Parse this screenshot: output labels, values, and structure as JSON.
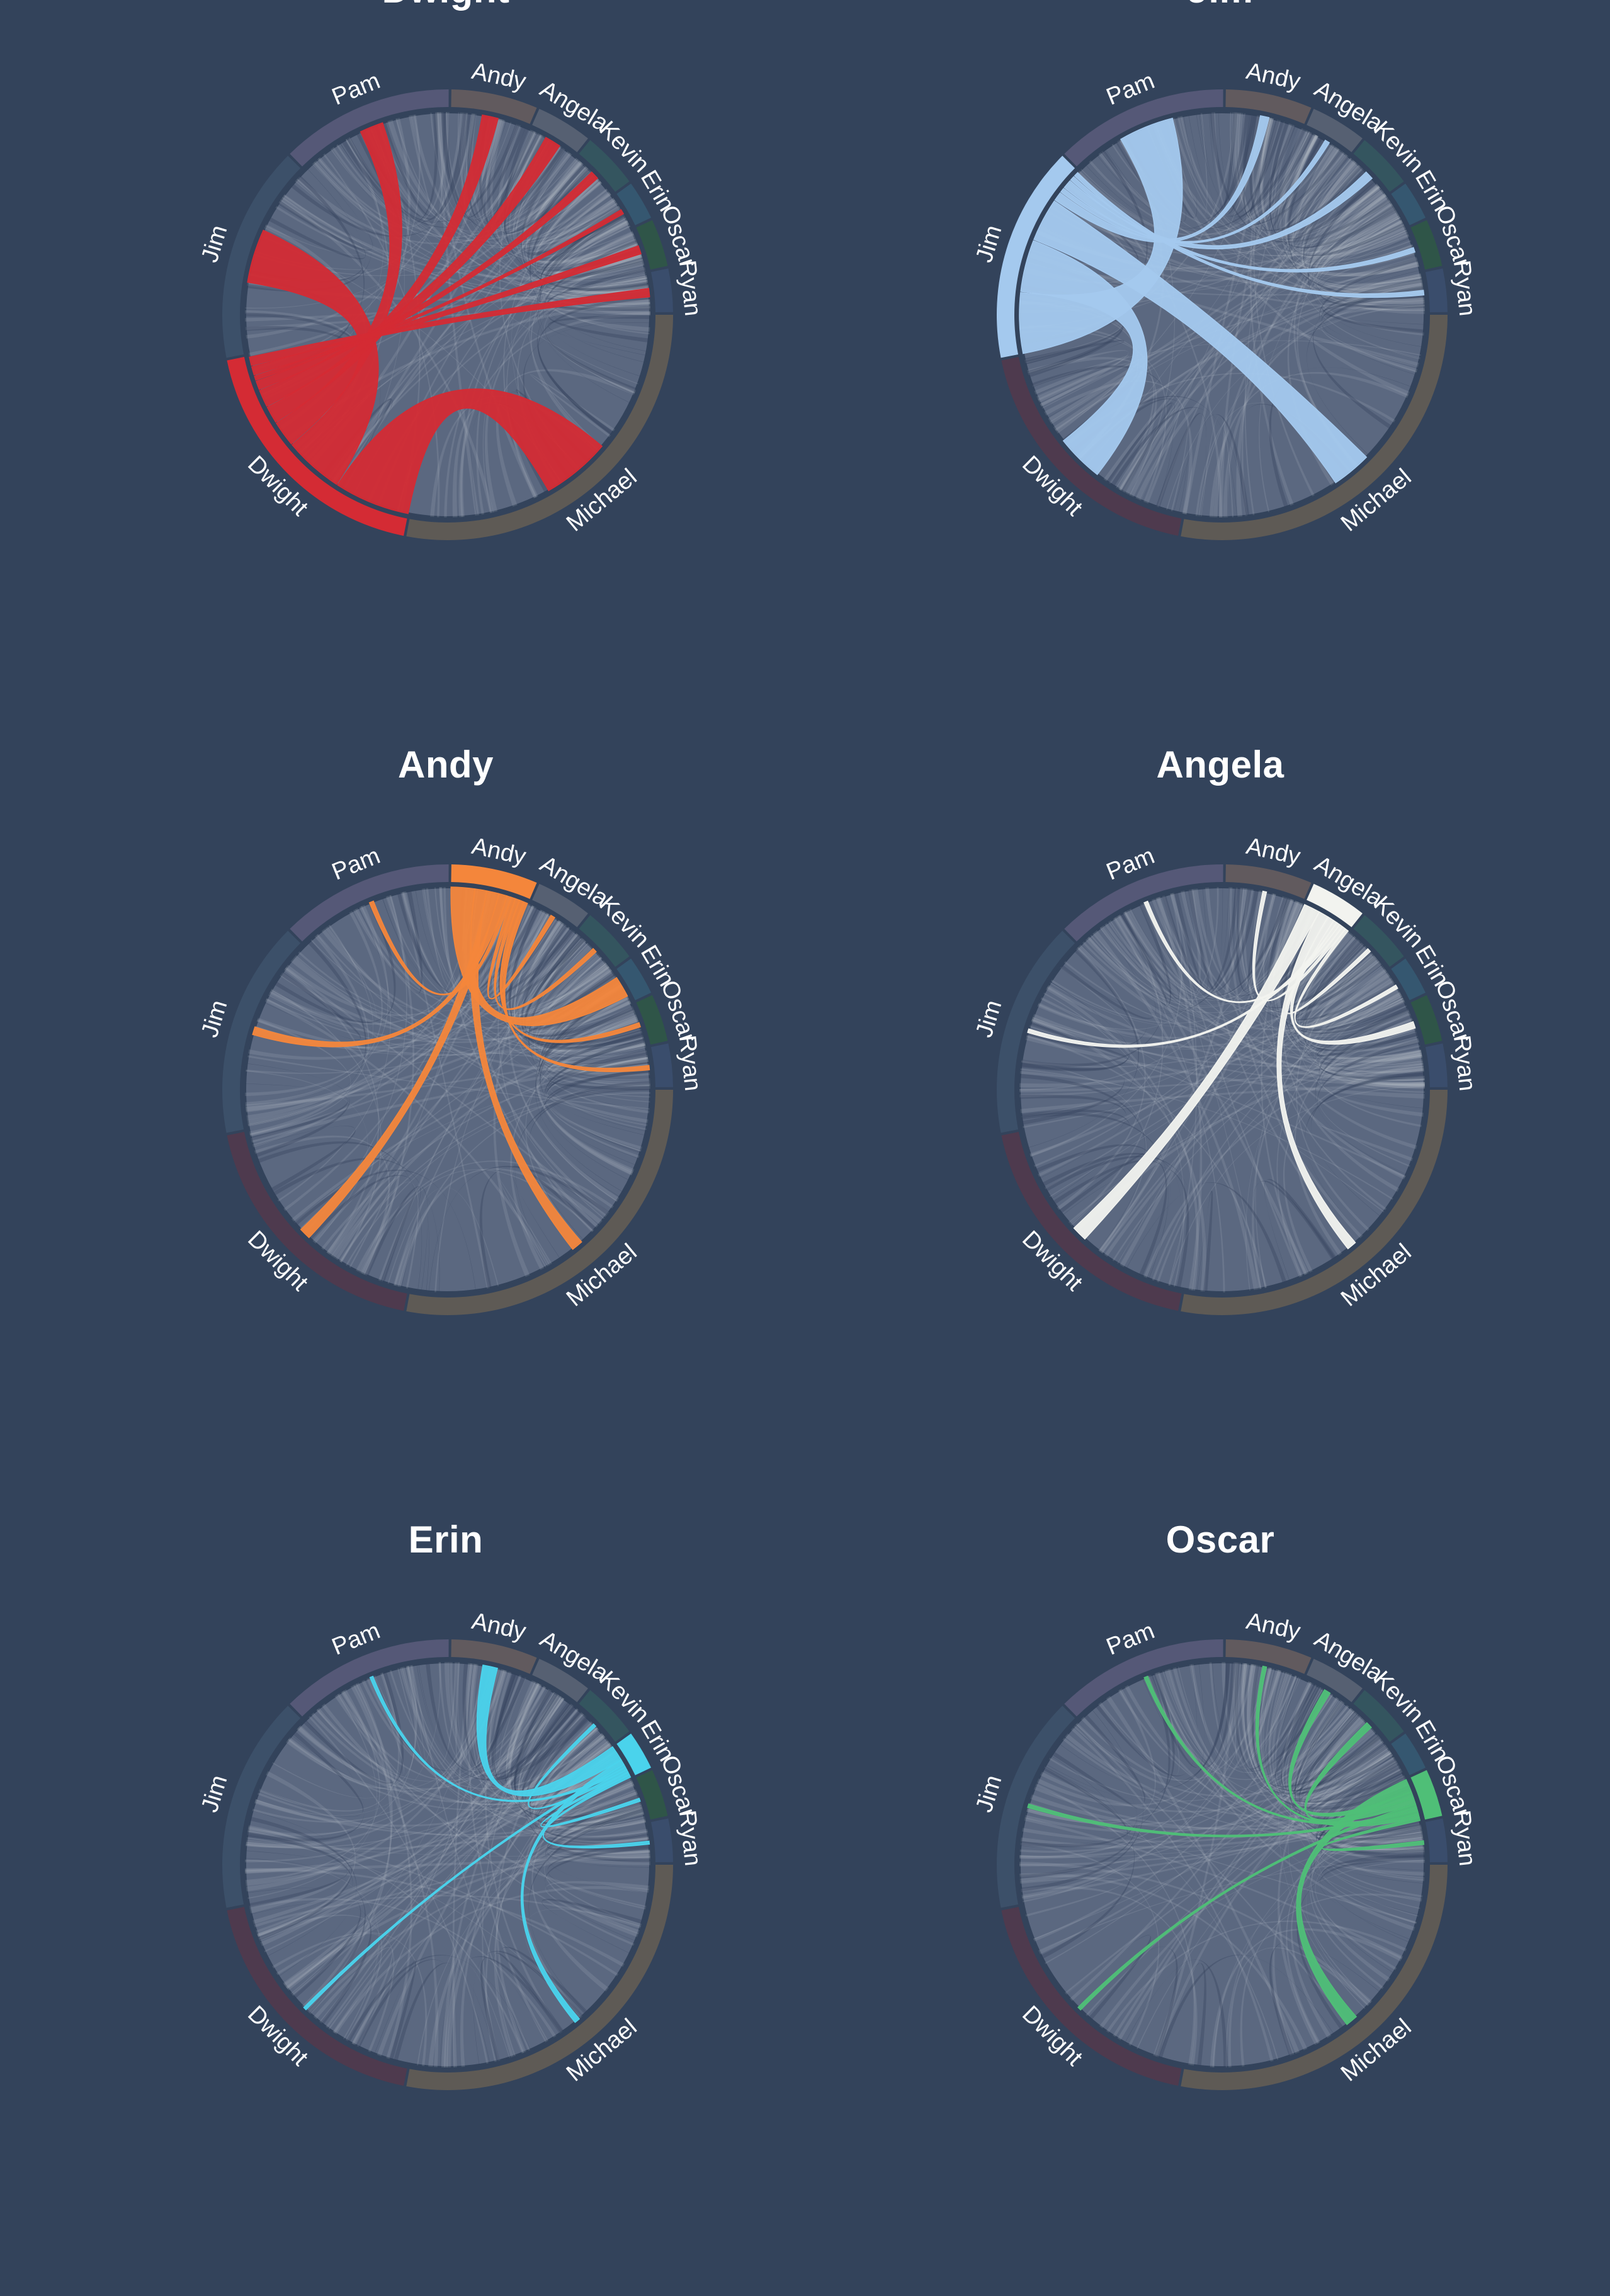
{
  "chart_data": {
    "type": "chord",
    "characters": [
      {
        "name": "Michael",
        "color": "#5e5a55",
        "value": 90
      },
      {
        "name": "Dwight",
        "color": "#4e3a4e",
        "value": 60
      },
      {
        "name": "Jim",
        "color": "#3c5069",
        "value": 50
      },
      {
        "name": "Pam",
        "color": "#555877",
        "value": 40
      },
      {
        "name": "Andy",
        "color": "#615a5e",
        "value": 20
      },
      {
        "name": "Angela",
        "color": "#566072",
        "value": 13
      },
      {
        "name": "Kevin",
        "color": "#34555f",
        "value": 13
      },
      {
        "name": "Erin",
        "color": "#355770",
        "value": 9
      },
      {
        "name": "Oscar",
        "color": "#2f5548",
        "value": 11
      },
      {
        "name": "Ryan",
        "color": "#3a4d6c",
        "value": 10
      }
    ],
    "panels": [
      {
        "title": "Dwight",
        "focus": "Dwight",
        "color": "#d42b34",
        "chords": [
          {
            "to": "Michael",
            "weight": 18
          },
          {
            "to": "Jim",
            "weight": 14
          },
          {
            "to": "Pam",
            "weight": 6
          },
          {
            "to": "Andy",
            "weight": 4
          },
          {
            "to": "Angela",
            "weight": 4
          },
          {
            "to": "Kevin",
            "weight": 2
          },
          {
            "to": "Erin",
            "weight": 1
          },
          {
            "to": "Oscar",
            "weight": 2
          },
          {
            "to": "Ryan",
            "weight": 2
          }
        ]
      },
      {
        "title": "Jim",
        "focus": "Jim",
        "color": "#a4c9ee",
        "chords": [
          {
            "to": "Pam",
            "weight": 14
          },
          {
            "to": "Dwight",
            "weight": 12
          },
          {
            "to": "Michael",
            "weight": 10
          },
          {
            "to": "Andy",
            "weight": 2
          },
          {
            "to": "Angela",
            "weight": 1
          },
          {
            "to": "Kevin",
            "weight": 2
          },
          {
            "to": "Oscar",
            "weight": 1
          },
          {
            "to": "Ryan",
            "weight": 1
          }
        ]
      },
      {
        "title": "Andy",
        "focus": "Andy",
        "color": "#f4863b",
        "chords": [
          {
            "to": "Erin",
            "weight": 6
          },
          {
            "to": "Michael",
            "weight": 3
          },
          {
            "to": "Dwight",
            "weight": 3
          },
          {
            "to": "Jim",
            "weight": 2
          },
          {
            "to": "Pam",
            "weight": 1
          },
          {
            "to": "Angela",
            "weight": 1
          },
          {
            "to": "Kevin",
            "weight": 1
          },
          {
            "to": "Oscar",
            "weight": 1
          },
          {
            "to": "Ryan",
            "weight": 1
          }
        ]
      },
      {
        "title": "Angela",
        "focus": "Angela",
        "color": "#f2f3ef",
        "chords": [
          {
            "to": "Dwight",
            "weight": 5
          },
          {
            "to": "Michael",
            "weight": 3
          },
          {
            "to": "Oscar",
            "weight": 2
          },
          {
            "to": "Kevin",
            "weight": 1
          },
          {
            "to": "Jim",
            "weight": 1
          },
          {
            "to": "Pam",
            "weight": 1
          },
          {
            "to": "Andy",
            "weight": 1
          },
          {
            "to": "Erin",
            "weight": 1
          }
        ]
      },
      {
        "title": "Erin",
        "focus": "Erin",
        "color": "#4ad3ec",
        "chords": [
          {
            "to": "Andy",
            "weight": 6
          },
          {
            "to": "Michael",
            "weight": 2
          },
          {
            "to": "Dwight",
            "weight": 1
          },
          {
            "to": "Pam",
            "weight": 1
          },
          {
            "to": "Kevin",
            "weight": 1
          },
          {
            "to": "Oscar",
            "weight": 1
          },
          {
            "to": "Ryan",
            "weight": 1
          }
        ]
      },
      {
        "title": "Oscar",
        "focus": "Oscar",
        "color": "#4fbf77",
        "chords": [
          {
            "to": "Michael",
            "weight": 4
          },
          {
            "to": "Angela",
            "weight": 2
          },
          {
            "to": "Kevin",
            "weight": 2
          },
          {
            "to": "Dwight",
            "weight": 1
          },
          {
            "to": "Jim",
            "weight": 1
          },
          {
            "to": "Pam",
            "weight": 1
          },
          {
            "to": "Andy",
            "weight": 1
          },
          {
            "to": "Ryan",
            "weight": 1
          }
        ]
      }
    ]
  }
}
